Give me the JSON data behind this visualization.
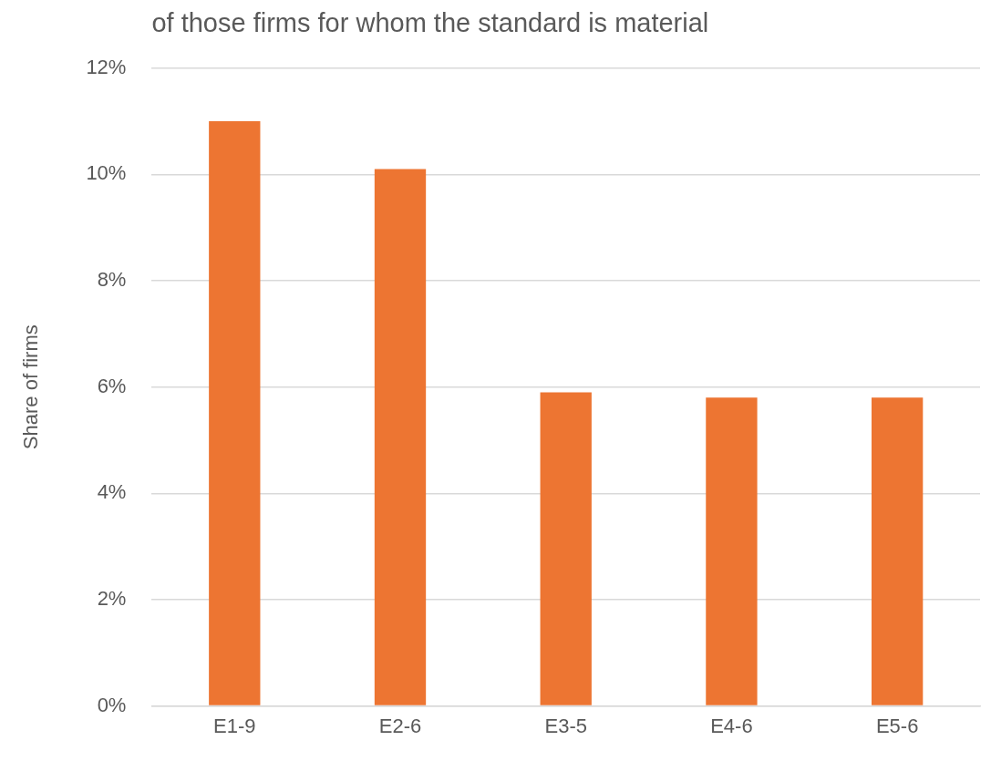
{
  "chart_data": {
    "type": "bar",
    "title": "of those firms for whom the standard is material",
    "ylabel": "Share of firms",
    "categories": [
      "E1-9",
      "E2-6",
      "E3-5",
      "E4-6",
      "E5-6"
    ],
    "values": [
      11.0,
      10.1,
      5.9,
      5.8,
      5.8
    ],
    "color": "#ed7532",
    "ylim": [
      0,
      12
    ],
    "yticks": [
      {
        "value": 0,
        "label": "0%"
      },
      {
        "value": 2,
        "label": "2%"
      },
      {
        "value": 4,
        "label": "4%"
      },
      {
        "value": 6,
        "label": "6%"
      },
      {
        "value": 8,
        "label": "8%"
      },
      {
        "value": 10,
        "label": "10%"
      },
      {
        "value": 12,
        "label": "12%"
      }
    ],
    "grid": "y",
    "legend": false
  }
}
